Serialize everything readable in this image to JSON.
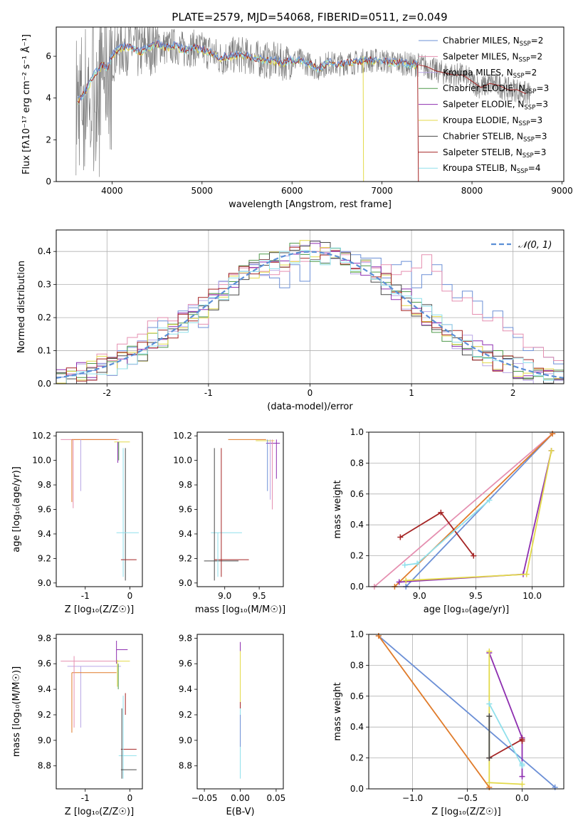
{
  "figure": {
    "title": "PLATE=2579, MJD=54068, FIBERID=0511, z=0.049"
  },
  "colors": {
    "Chabrier MILES": "#6b8fd6",
    "Salpeter MILES": "#e58fb0",
    "Kroupa MILES": "#b9a6e6",
    "Chabrier ELODIE": "#4f9a4b",
    "Salpeter ELODIE": "#8e2fb0",
    "Kroupa ELODIE": "#e3da4a",
    "Chabrier STELIB": "#4a4a4a",
    "Salpeter STELIB": "#a52525",
    "Kroupa STELIB": "#8fe0ec",
    "data": "#808080",
    "normal": "#5b8fd6",
    "orange": "#e07b2a",
    "lime": "#b5d44a"
  },
  "legend": {
    "entries": [
      {
        "text": "Chabrier MILES, N",
        "sub": "SSP",
        "tail": "=2"
      },
      {
        "text": "Salpeter MILES, N",
        "sub": "SSP",
        "tail": "=2"
      },
      {
        "text": "Kroupa MILES, N",
        "sub": "SSP",
        "tail": "=2"
      },
      {
        "text": "Chabrier ELODIE, N",
        "sub": "SSP",
        "tail": "=3"
      },
      {
        "text": "Salpeter ELODIE, N",
        "sub": "SSP",
        "tail": "=3"
      },
      {
        "text": "Kroupa ELODIE, N",
        "sub": "SSP",
        "tail": "=3"
      },
      {
        "text": "Chabrier STELIB, N",
        "sub": "SSP",
        "tail": "=3"
      },
      {
        "text": "Salpeter STELIB, N",
        "sub": "SSP",
        "tail": "=3"
      },
      {
        "text": "Kroupa STELIB, N",
        "sub": "SSP",
        "tail": "=4"
      }
    ],
    "hist_label": "𝒩(0, 1)"
  },
  "chart_data": [
    {
      "id": "spectrum",
      "type": "line",
      "xlabel": "wavelength [Angstrom, rest frame]",
      "ylabel": "Flux [fλ10⁻¹⁷ erg cm⁻² s⁻¹ Å⁻¹]",
      "xlim": [
        3380,
        9020
      ],
      "ylim": [
        0,
        7.4
      ],
      "xticks": [
        4000,
        5000,
        6000,
        7000,
        8000,
        9000
      ],
      "yticks": [
        0,
        2,
        4,
        6
      ],
      "grid": false,
      "legend_placement": "right",
      "model_curve": {
        "x": [
          3620,
          3700,
          3800,
          3900,
          3950,
          4000,
          4100,
          4200,
          4300,
          4400,
          4500,
          4600,
          4700,
          4800,
          4900,
          5000,
          5100,
          5200,
          5300,
          5400,
          5500,
          5600,
          5700,
          5800,
          5900,
          6000,
          6100,
          6200,
          6300,
          6400,
          6500,
          6600,
          6700,
          6800,
          6900,
          7000,
          7100,
          7200,
          7300,
          7400
        ],
        "y": [
          3.8,
          4.3,
          5.1,
          5.6,
          5.4,
          6.1,
          6.4,
          6.5,
          6.2,
          6.4,
          6.6,
          6.4,
          6.5,
          6.3,
          6.4,
          6.3,
          6.2,
          5.9,
          6.0,
          6.1,
          6.0,
          5.9,
          5.8,
          5.8,
          5.7,
          5.8,
          5.8,
          5.6,
          5.4,
          5.7,
          5.6,
          5.7,
          5.7,
          5.8,
          5.8,
          5.8,
          5.7,
          5.7,
          5.6,
          5.6
        ]
      },
      "model_tail": {
        "x": [
          7400,
          7500,
          7600,
          7700,
          7800,
          7900,
          8000,
          8100,
          8200,
          8300,
          8400,
          8500,
          8600
        ],
        "y": [
          5.6,
          5.5,
          5.3,
          5.2,
          5.1,
          5.1,
          4.8,
          4.5,
          4.7,
          4.6,
          4.4,
          4.4,
          4.2
        ]
      }
    },
    {
      "id": "residuals",
      "type": "line",
      "xlabel": "(data-model)/error",
      "ylabel": "Normed distribution",
      "xlim": [
        -2.5,
        2.5
      ],
      "ylim": [
        0,
        0.465
      ],
      "xticks": [
        -2,
        -1,
        0,
        1,
        2
      ],
      "yticks": [
        0.0,
        0.1,
        0.2,
        0.3,
        0.4
      ],
      "grid": true,
      "legend_placement": "top-right",
      "bin_width": 0.1,
      "bins_start": -2.5,
      "series": [
        {
          "key": "Chabrier MILES",
          "values": [
            0.02,
            0.03,
            0.03,
            0.04,
            0.06,
            0.08,
            0.1,
            0.11,
            0.13,
            0.17,
            0.19,
            0.18,
            0.22,
            0.23,
            0.17,
            0.26,
            0.31,
            0.3,
            0.34,
            0.36,
            0.33,
            0.32,
            0.29,
            0.36,
            0.31,
            0.4,
            0.39,
            0.41,
            0.4,
            0.39,
            0.38,
            0.38,
            0.32,
            0.36,
            0.37,
            0.29,
            0.33,
            0.36,
            0.3,
            0.26,
            0.28,
            0.25,
            0.2,
            0.22,
            0.17,
            0.14,
            0.1,
            0.11,
            0.08,
            0.06,
            0.05
          ]
        },
        {
          "key": "Salpeter MILES",
          "values": [
            0.03,
            0.03,
            0.04,
            0.05,
            0.09,
            0.07,
            0.12,
            0.14,
            0.15,
            0.19,
            0.2,
            0.19,
            0.21,
            0.24,
            0.18,
            0.27,
            0.3,
            0.33,
            0.35,
            0.35,
            0.34,
            0.33,
            0.34,
            0.37,
            0.37,
            0.4,
            0.41,
            0.4,
            0.39,
            0.35,
            0.37,
            0.35,
            0.36,
            0.33,
            0.34,
            0.35,
            0.39,
            0.34,
            0.28,
            0.25,
            0.26,
            0.21,
            0.19,
            0.2,
            0.16,
            0.15,
            0.11,
            0.11,
            0.08,
            0.07,
            0.06
          ]
        }
      ]
    },
    {
      "id": "age-vs-Z",
      "type": "scatter",
      "xlabel": "Z [log₁₀(Z/Z☉)]",
      "ylabel": "age  [log₁₀(age/yr)]",
      "xlim": [
        -1.65,
        0.28
      ],
      "ylim": [
        8.97,
        10.23
      ],
      "xticks": [
        -1,
        0
      ],
      "yticks": [
        9.0,
        9.2,
        9.4,
        9.6,
        9.8,
        10.0,
        10.2
      ]
    },
    {
      "id": "age-vs-mass",
      "type": "scatter",
      "xlabel": "mass [log₁₀(M/M☉)]",
      "ylabel": "",
      "xlim": [
        8.6,
        9.85
      ],
      "ylim": [
        8.97,
        10.23
      ],
      "xticks": [
        9.0,
        9.5
      ],
      "yticks": [
        9.0,
        9.2,
        9.4,
        9.6,
        9.8,
        10.0,
        10.2
      ]
    },
    {
      "id": "mass-weight-vs-age",
      "type": "line",
      "xlabel": "age  [log₁₀(age/yr)]",
      "ylabel": "mass weight",
      "xlim": [
        8.55,
        10.28
      ],
      "ylim": [
        0,
        1.0
      ],
      "xticks": [
        9.0,
        9.5,
        10.0
      ],
      "yticks": [
        0.0,
        0.2,
        0.4,
        0.6,
        0.8,
        1.0
      ],
      "grid": true,
      "series": [
        {
          "key": "Chabrier MILES",
          "x": [
            8.88,
            10.18
          ],
          "y": [
            0.0,
            0.99
          ]
        },
        {
          "key": "Salpeter MILES",
          "x": [
            8.6,
            10.18
          ],
          "y": [
            0.0,
            0.99
          ]
        },
        {
          "key": "orange",
          "x": [
            8.78,
            10.18
          ],
          "y": [
            0.0,
            0.99
          ]
        },
        {
          "key": "Salpeter ELODIE",
          "x": [
            8.82,
            9.92,
            10.17
          ],
          "y": [
            0.03,
            0.08,
            0.88
          ]
        },
        {
          "key": "Kroupa ELODIE",
          "x": [
            8.88,
            9.95,
            10.17
          ],
          "y": [
            0.04,
            0.08,
            0.88
          ]
        },
        {
          "key": "Salpeter STELIB",
          "x": [
            8.83,
            9.19,
            9.48
          ],
          "y": [
            0.32,
            0.48,
            0.2
          ]
        },
        {
          "key": "Kroupa STELIB",
          "x": [
            8.87,
            8.98,
            9.62
          ],
          "y": [
            0.14,
            0.15,
            0.56
          ]
        }
      ]
    },
    {
      "id": "mass-vs-Z",
      "type": "scatter",
      "xlabel": "Z [log₁₀(Z/Z☉)]",
      "ylabel": "mass [log₁₀(M/M☉)]",
      "xlim": [
        -1.65,
        0.28
      ],
      "ylim": [
        8.62,
        9.83
      ],
      "xticks": [
        -1,
        0
      ],
      "yticks": [
        8.8,
        9.0,
        9.2,
        9.4,
        9.6,
        9.8
      ]
    },
    {
      "id": "ebv",
      "type": "scatter",
      "xlabel": "E(B-V)",
      "ylabel": "",
      "xlim": [
        -0.06,
        0.06
      ],
      "ylim": [
        8.62,
        9.83
      ],
      "xticks": [
        -0.05,
        0.0,
        0.05
      ],
      "xtick_labels": [
        "−0.05",
        "0.00",
        "0.05"
      ],
      "yticks": [
        8.8,
        9.0,
        9.2,
        9.4,
        9.6,
        9.8
      ]
    },
    {
      "id": "mass-weight-vs-Z",
      "type": "line",
      "xlabel": "Z [log₁₀(Z/Z☉)]",
      "ylabel": "mass weight",
      "xlim": [
        -1.4,
        0.38
      ],
      "ylim": [
        0,
        1.0
      ],
      "xticks": [
        -1.0,
        -0.5,
        0.0
      ],
      "xtick_labels": [
        "−1.0",
        "−0.5",
        "0.0"
      ],
      "yticks": [
        0.0,
        0.2,
        0.4,
        0.6,
        0.8,
        1.0
      ],
      "grid": true,
      "series": [
        {
          "key": "Chabrier MILES",
          "x": [
            -1.31,
            0.3
          ],
          "y": [
            0.99,
            0.01
          ]
        },
        {
          "key": "orange",
          "x": [
            -1.31,
            -0.3
          ],
          "y": [
            0.99,
            0.01
          ]
        },
        {
          "key": "Salpeter ELODIE",
          "x": [
            -0.3,
            0.0,
            0.0
          ],
          "y": [
            0.88,
            0.33,
            0.08
          ]
        },
        {
          "key": "Kroupa ELODIE",
          "x": [
            -0.3,
            -0.3,
            0.0
          ],
          "y": [
            0.89,
            0.04,
            0.03
          ]
        },
        {
          "key": "Salpeter STELIB",
          "x": [
            -0.3,
            0.0,
            0.0
          ],
          "y": [
            0.2,
            0.32,
            0.31
          ]
        },
        {
          "key": "Kroupa STELIB",
          "x": [
            -0.3,
            0.0,
            0.0
          ],
          "y": [
            0.55,
            0.15,
            0.16
          ]
        },
        {
          "key": "Chabrier STELIB",
          "x": [
            -0.3,
            -0.3
          ],
          "y": [
            0.47,
            0.2
          ]
        }
      ]
    }
  ]
}
